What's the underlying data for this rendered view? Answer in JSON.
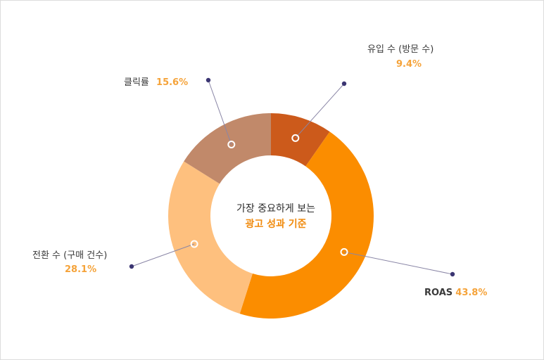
{
  "chart_data": {
    "type": "pie",
    "center_text": [
      "가장 중요하게 보는",
      "광고 성과 기준"
    ],
    "slices": [
      {
        "label": "유입 수 (방문 수)",
        "value": 9.4,
        "value_label": "9.4%",
        "color": "#cc5a1b"
      },
      {
        "label": "ROAS",
        "value": 43.8,
        "value_label": "43.8%",
        "color": "#fb8d00"
      },
      {
        "label": "전환 수 (구매 건수)",
        "value": 28.1,
        "value_label": "28.1%",
        "color": "#fec07e"
      },
      {
        "label": "클릭률",
        "value": 15.6,
        "value_label": "15.6%",
        "color": "#c1896a"
      }
    ]
  }
}
